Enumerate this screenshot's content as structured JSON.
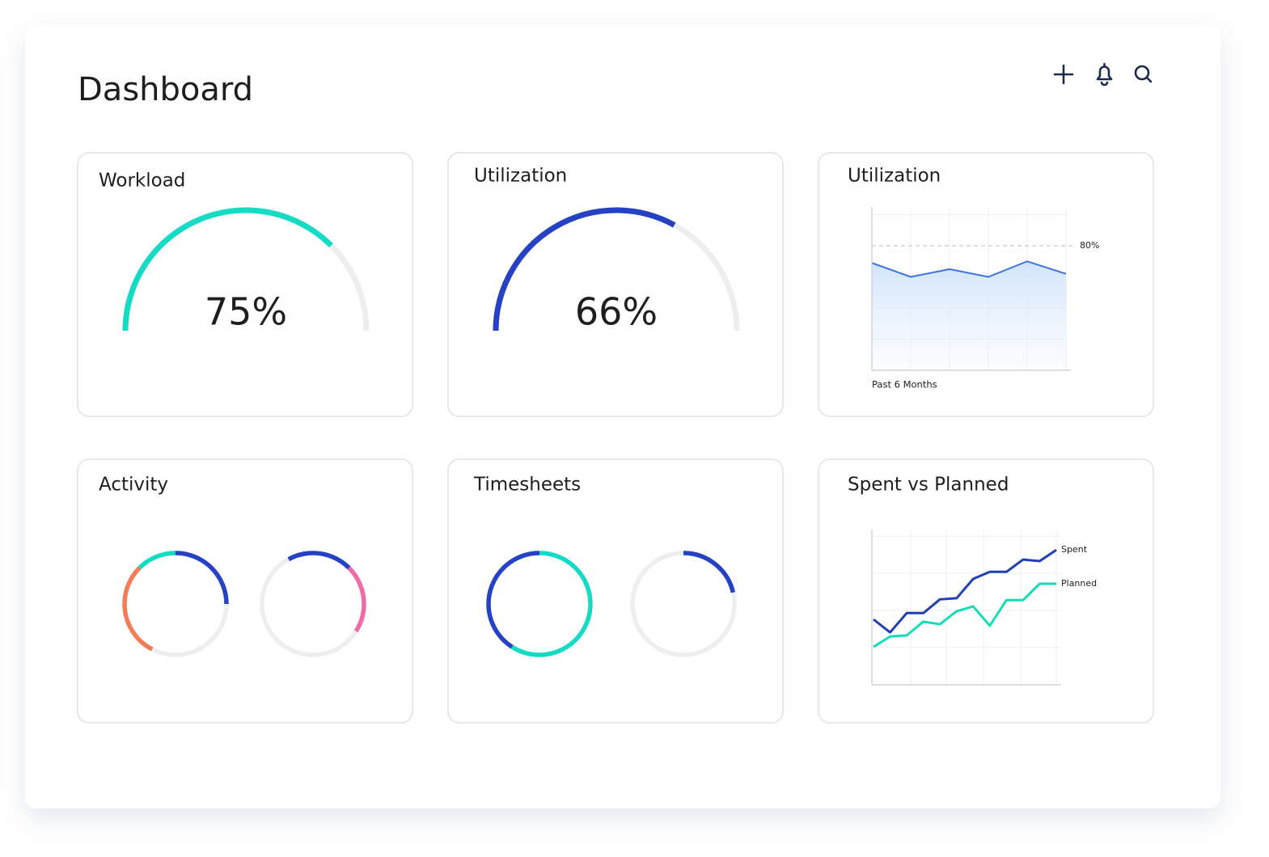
{
  "header": {
    "title": "Dashboard"
  },
  "cards": [
    {
      "title": "Workload",
      "type": "gauge",
      "value": 75,
      "value_label": "75%",
      "color": "#14dcc4",
      "ylim": [
        0,
        100
      ]
    },
    {
      "title": "Utilization",
      "type": "gauge",
      "value": 66,
      "value_label": "66%",
      "color": "#2541c4",
      "ylim": [
        0,
        100
      ]
    },
    {
      "title": "Utilization",
      "type": "area",
      "values": [
        69,
        60,
        65,
        60,
        70,
        62
      ],
      "color": "#3a72e0",
      "ylim": [
        0,
        100
      ],
      "gridlines": [
        20,
        40,
        60,
        100
      ],
      "threshold": {
        "value": 80,
        "label": "80%"
      },
      "x_label": "Past 6 Months"
    },
    {
      "title": "Activity",
      "type": "rings",
      "rings": [
        {
          "segments": [
            {
              "color": "#2541c4",
              "value": 25
            },
            {
              "color": "#eceeef",
              "value": 32.5
            },
            {
              "color": "#f47c58",
              "value": 30
            },
            {
              "color": "#14dcc4",
              "value": 12.5
            }
          ]
        },
        {
          "segments": [
            {
              "color": "#2541c4",
              "value": 12.5
            },
            {
              "color": "#f06aa8",
              "value": 21.5
            },
            {
              "color": "#eceeef",
              "value": 58
            },
            {
              "color": "#2541c4",
              "value": 8
            }
          ]
        }
      ]
    },
    {
      "title": "Timesheets",
      "type": "rings",
      "rings": [
        {
          "segments": [
            {
              "color": "#14dcc4",
              "value": 59
            },
            {
              "color": "#2541c4",
              "value": 41
            }
          ]
        },
        {
          "segments": [
            {
              "color": "#2541c4",
              "value": 21.4
            },
            {
              "color": "#eceeef",
              "value": 78.6
            }
          ]
        }
      ]
    },
    {
      "title": "Spent vs Planned",
      "type": "line",
      "ylim": [
        0,
        4.2
      ],
      "gridlines": [
        1,
        2,
        3,
        4
      ],
      "series": [
        {
          "name": "Spent",
          "color": "#1f3fb3",
          "values": [
            1.76,
            1.41,
            1.93,
            1.93,
            2.3,
            2.33,
            2.85,
            3.04,
            3.04,
            3.37,
            3.33,
            3.63
          ]
        },
        {
          "name": "Planned",
          "color": "#14dcb8",
          "values": [
            1.02,
            1.3,
            1.33,
            1.7,
            1.63,
            1.98,
            2.11,
            1.59,
            2.28,
            2.28,
            2.72,
            2.72
          ]
        }
      ]
    }
  ]
}
